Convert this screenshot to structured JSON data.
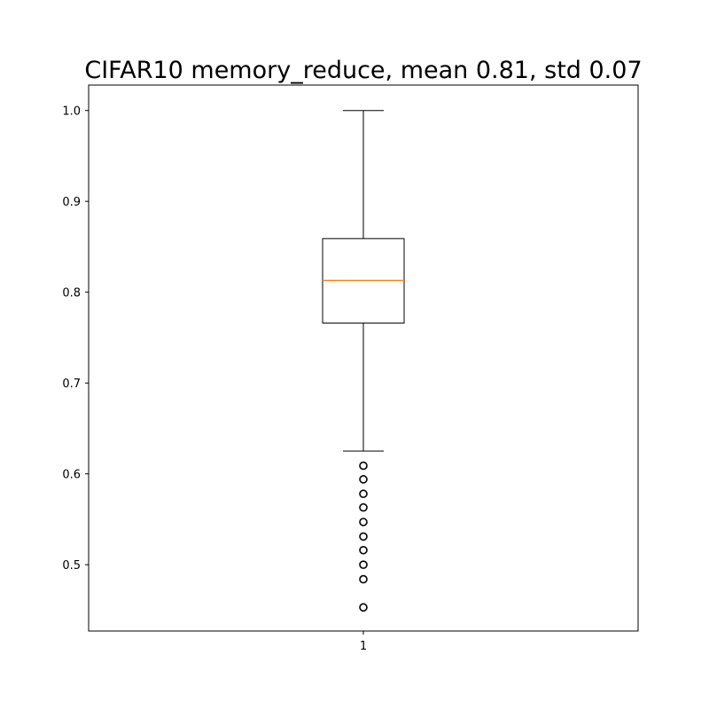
{
  "chart_data": {
    "type": "box",
    "title": "CIFAR10 memory_reduce, mean 0.81, std 0.07",
    "xlabel": "",
    "ylabel": "",
    "categories": [
      "1"
    ],
    "ylim": [
      0.427,
      1.028
    ],
    "yticks": [
      {
        "value": 0.5,
        "label": "0.5"
      },
      {
        "value": 0.6,
        "label": "0.6"
      },
      {
        "value": 0.7,
        "label": "0.7"
      },
      {
        "value": 0.8,
        "label": "0.8"
      },
      {
        "value": 0.9,
        "label": "0.9"
      },
      {
        "value": 1.0,
        "label": "1.0"
      }
    ],
    "grid": false,
    "box": {
      "whisker_low": 0.625,
      "q1": 0.766,
      "median": 0.813,
      "q3": 0.859,
      "whisker_high": 1.0,
      "outliers": [
        0.609,
        0.594,
        0.578,
        0.563,
        0.547,
        0.531,
        0.516,
        0.5,
        0.484,
        0.453
      ]
    },
    "colors": {
      "box": "#000000",
      "median": "#ff7f0e",
      "outlier": "#000000"
    }
  }
}
